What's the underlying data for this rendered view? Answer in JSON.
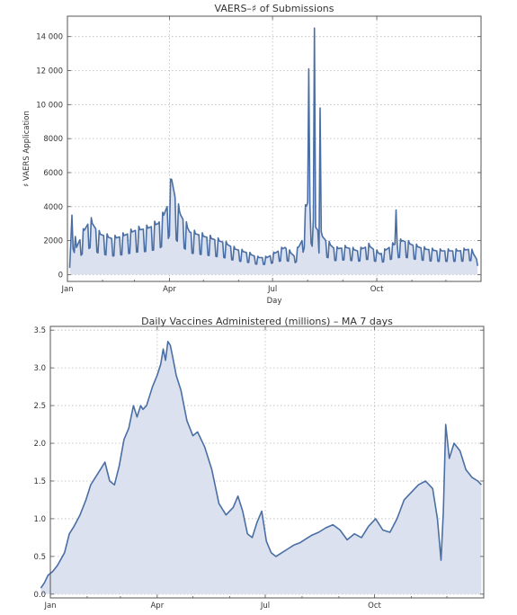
{
  "chart_data": [
    {
      "type": "area",
      "title": "VAERS–♯ of Submissions",
      "xlabel": "Day",
      "ylabel": "♯ VAERS Application",
      "xlim": [
        0,
        365
      ],
      "ylim": [
        -400,
        15200
      ],
      "x_ticks": [
        {
          "label": "Jan",
          "day": 0
        },
        {
          "label": "Apr",
          "day": 90
        },
        {
          "label": "Jul",
          "day": 181
        },
        {
          "label": "Oct",
          "day": 273
        }
      ],
      "y_ticks": [
        {
          "label": "0",
          "value": 0
        },
        {
          "label": "2000",
          "value": 2000
        },
        {
          "label": "4000",
          "value": 4000
        },
        {
          "label": "6000",
          "value": 6000
        },
        {
          "label": "8000",
          "value": 8000
        },
        {
          "label": "10 000",
          "value": 10000
        },
        {
          "label": "12 000",
          "value": 12000
        },
        {
          "label": "14 000",
          "value": 14000
        }
      ],
      "grid": true,
      "series_color": "#4a6fa5",
      "fill_color": "#dbe1ee",
      "anchors": [
        [
          2,
          400
        ],
        [
          4,
          3500
        ],
        [
          8,
          1600
        ],
        [
          14,
          2500
        ],
        [
          20,
          3200
        ],
        [
          28,
          2400
        ],
        [
          40,
          2100
        ],
        [
          50,
          2300
        ],
        [
          60,
          2600
        ],
        [
          70,
          2700
        ],
        [
          80,
          3000
        ],
        [
          85,
          3500
        ],
        [
          88,
          4000
        ],
        [
          92,
          5600
        ],
        [
          96,
          4200
        ],
        [
          100,
          3500
        ],
        [
          108,
          2500
        ],
        [
          118,
          2300
        ],
        [
          128,
          2100
        ],
        [
          138,
          1900
        ],
        [
          148,
          1500
        ],
        [
          158,
          1300
        ],
        [
          168,
          1000
        ],
        [
          176,
          1000
        ],
        [
          184,
          1300
        ],
        [
          192,
          1600
        ],
        [
          200,
          1100
        ],
        [
          207,
          2000
        ],
        [
          210,
          3800
        ],
        [
          213,
          4500
        ],
        [
          217,
          3000
        ],
        [
          222,
          2500
        ],
        [
          228,
          2000
        ],
        [
          236,
          1500
        ],
        [
          246,
          1600
        ],
        [
          256,
          1400
        ],
        [
          266,
          1700
        ],
        [
          276,
          1200
        ],
        [
          286,
          1700
        ],
        [
          296,
          2000
        ],
        [
          306,
          1700
        ],
        [
          316,
          1500
        ],
        [
          326,
          1400
        ],
        [
          336,
          1400
        ],
        [
          346,
          1400
        ],
        [
          356,
          1500
        ],
        [
          362,
          800
        ]
      ],
      "spikes": [
        {
          "x": 213,
          "value": 12100
        },
        {
          "x": 218,
          "value": 14500
        },
        {
          "x": 223,
          "value": 9800
        },
        {
          "x": 290,
          "value": 3800
        }
      ],
      "weekly_dip_fraction": 0.55
    },
    {
      "type": "area",
      "title": "Daily Vaccines Administered (millions) – MA 7 days",
      "xlabel": "",
      "ylabel": "",
      "xlim": [
        0,
        365
      ],
      "ylim": [
        -0.05,
        3.55
      ],
      "x_ticks": [
        {
          "label": "Jan",
          "day": 0
        },
        {
          "label": "Apr",
          "day": 90
        },
        {
          "label": "Jul",
          "day": 181
        },
        {
          "label": "Oct",
          "day": 273
        }
      ],
      "y_ticks": [
        {
          "label": "0.0",
          "value": 0.0
        },
        {
          "label": "0.5",
          "value": 0.5
        },
        {
          "label": "1.0",
          "value": 1.0
        },
        {
          "label": "1.5",
          "value": 1.5
        },
        {
          "label": "2.0",
          "value": 2.0
        },
        {
          "label": "2.5",
          "value": 2.5
        },
        {
          "label": "3.0",
          "value": 3.0
        },
        {
          "label": "3.5",
          "value": 3.5
        }
      ],
      "grid": true,
      "series_color": "#4a6fa5",
      "fill_color": "#dbe1ee",
      "x": [
        -8,
        -5,
        -2,
        2,
        6,
        12,
        16,
        20,
        25,
        30,
        34,
        38,
        42,
        46,
        50,
        54,
        58,
        62,
        66,
        70,
        73,
        76,
        78,
        81,
        83,
        86,
        90,
        93,
        95,
        97,
        99,
        101,
        103,
        106,
        110,
        115,
        120,
        124,
        130,
        136,
        142,
        148,
        154,
        158,
        162,
        166,
        170,
        174,
        178,
        182,
        186,
        190,
        195,
        200,
        205,
        210,
        215,
        220,
        226,
        232,
        238,
        244,
        250,
        256,
        262,
        268,
        274,
        280,
        286,
        292,
        298,
        304,
        310,
        316,
        322,
        326,
        329,
        331,
        333,
        336,
        340,
        345,
        350,
        355,
        360,
        363
      ],
      "y": [
        0.08,
        0.15,
        0.25,
        0.3,
        0.38,
        0.55,
        0.8,
        0.9,
        1.05,
        1.25,
        1.45,
        1.55,
        1.65,
        1.75,
        1.5,
        1.45,
        1.7,
        2.05,
        2.2,
        2.5,
        2.35,
        2.5,
        2.45,
        2.5,
        2.6,
        2.75,
        2.9,
        3.05,
        3.25,
        3.1,
        3.35,
        3.3,
        3.15,
        2.9,
        2.7,
        2.3,
        2.1,
        2.15,
        1.95,
        1.65,
        1.2,
        1.05,
        1.15,
        1.3,
        1.1,
        0.8,
        0.75,
        0.95,
        1.1,
        0.7,
        0.55,
        0.5,
        0.55,
        0.6,
        0.65,
        0.68,
        0.73,
        0.78,
        0.82,
        0.88,
        0.92,
        0.85,
        0.72,
        0.8,
        0.75,
        0.9,
        1.0,
        0.85,
        0.82,
        1.0,
        1.25,
        1.35,
        1.45,
        1.5,
        1.4,
        1.0,
        0.45,
        1.1,
        2.25,
        1.8,
        2.0,
        1.9,
        1.65,
        1.55,
        1.5,
        1.45
      ]
    }
  ]
}
